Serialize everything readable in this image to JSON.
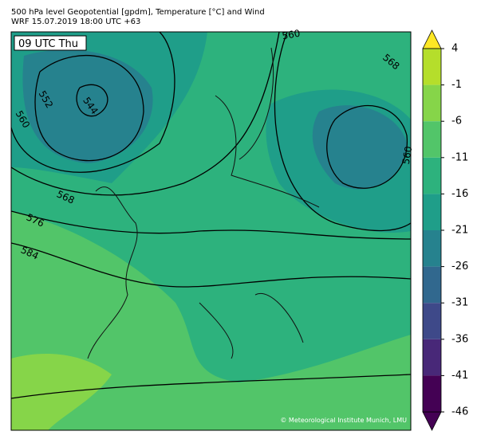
{
  "header": {
    "title": "500 hPa level Geopotential [gpdm], Temperature [°C] and Wind",
    "subtitle": "WRF 15.07.2019 18:00 UTC +63"
  },
  "map": {
    "time_label": "09 UTC Thu",
    "contour_labels": [
      "544",
      "552",
      "560",
      "568",
      "576",
      "584",
      "560",
      "568",
      "560"
    ],
    "copyright": "© Meteorological Institute Munich, LMU"
  },
  "colorbar": {
    "ticks": [
      4,
      -1,
      -6,
      -11,
      -16,
      -21,
      -26,
      -31,
      -36,
      -41,
      -46
    ],
    "colors": [
      "#b5de2b",
      "#86d549",
      "#52c569",
      "#2db27d",
      "#1f9e89",
      "#26828e",
      "#31688e",
      "#3e4989",
      "#482878",
      "#440154"
    ],
    "over_color": "#fde725",
    "under_color": "#440154"
  }
}
